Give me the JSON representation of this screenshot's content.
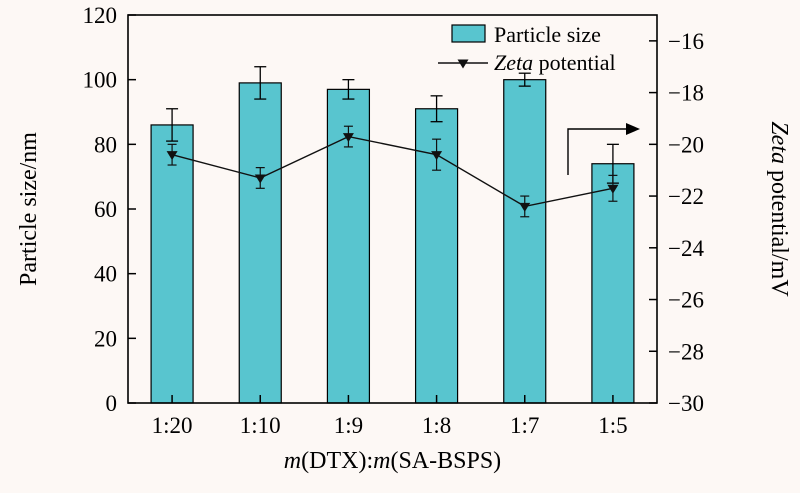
{
  "figure": {
    "background": "#fdf8f5"
  },
  "chart_data": {
    "type": "bar+line",
    "categories": [
      "1:20",
      "1:10",
      "1:9",
      "1:8",
      "1:7",
      "1:5"
    ],
    "series": [
      {
        "name": "Particle size",
        "type": "bar",
        "axis": "left",
        "color": "#58c5cf",
        "values": [
          86,
          99,
          97,
          91,
          100,
          74
        ],
        "errors": [
          5,
          5,
          3,
          4,
          2,
          6
        ]
      },
      {
        "name": "Zeta potential",
        "type": "line",
        "axis": "right",
        "color": "#111111",
        "marker": "triangle-down",
        "values": [
          -20.4,
          -21.3,
          -19.7,
          -20.4,
          -22.4,
          -21.7
        ],
        "errors": [
          0.4,
          0.4,
          0.4,
          0.6,
          0.4,
          0.5
        ]
      }
    ],
    "left_axis": {
      "label": "Particle size/nm",
      "min": 0,
      "max": 120,
      "ticks": [
        0,
        20,
        40,
        60,
        80,
        100,
        120
      ]
    },
    "right_axis": {
      "label_parts": [
        {
          "text": "Zeta",
          "italic": true
        },
        {
          "text": " potential/mV",
          "italic": false
        }
      ],
      "min": -30,
      "max": -15,
      "ticks": [
        -16,
        -18,
        -20,
        -22,
        -24,
        -26,
        -28,
        -30
      ]
    },
    "x_axis": {
      "label_parts": [
        {
          "text": "m",
          "italic": true
        },
        {
          "text": "(DTX):",
          "italic": false
        },
        {
          "text": "m",
          "italic": true
        },
        {
          "text": "(SA-BSPS)",
          "italic": false
        }
      ]
    },
    "legend": {
      "items": [
        {
          "label_parts": [
            {
              "text": "Particle size",
              "italic": false
            }
          ],
          "swatch": "bar"
        },
        {
          "label_parts": [
            {
              "text": "Zeta",
              "italic": true
            },
            {
              "text": " potential",
              "italic": false
            }
          ],
          "swatch": "line-marker"
        }
      ]
    },
    "grid": false,
    "legend_position": "top-right-inside"
  }
}
